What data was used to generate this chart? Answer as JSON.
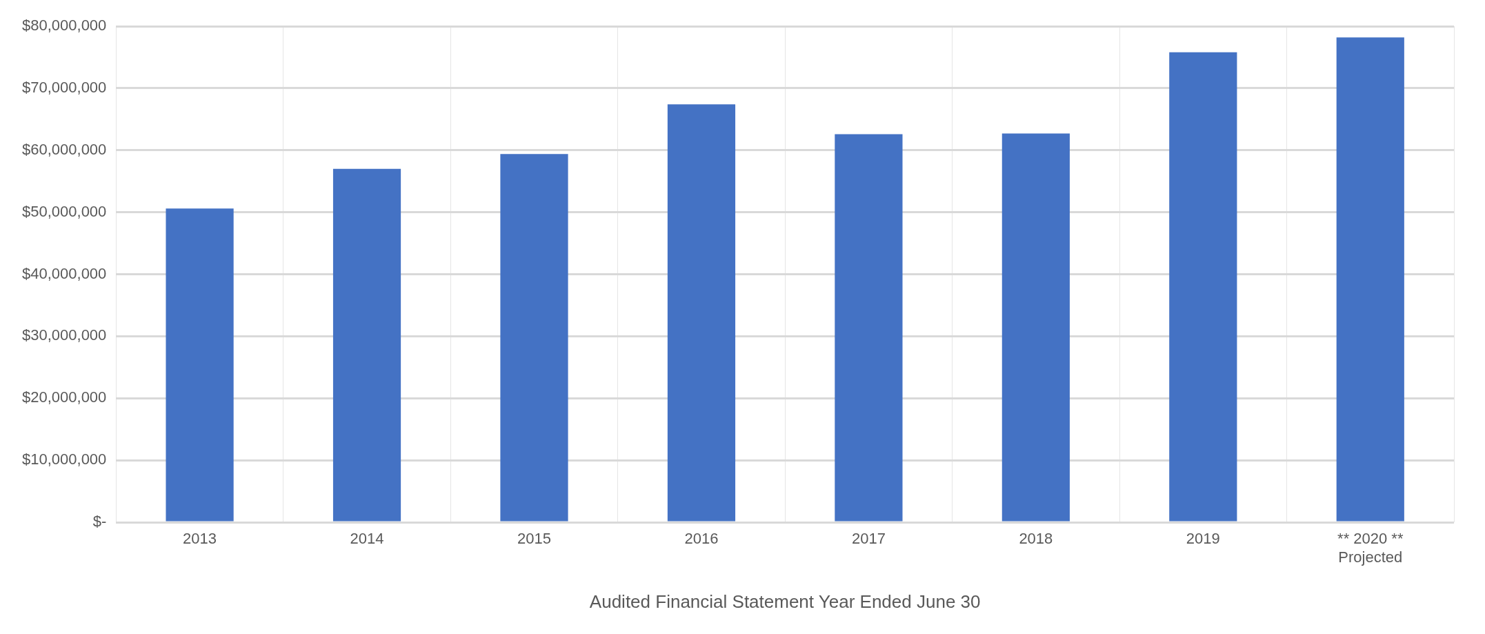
{
  "chart_data": {
    "type": "bar",
    "xlabel": "Audited Financial Statement Year Ended June 30",
    "categories": [
      "2013",
      "2014",
      "2015",
      "2016",
      "2017",
      "2018",
      "2019",
      "** 2020 **\nProjected"
    ],
    "values": [
      50600000,
      57000000,
      59400000,
      67400000,
      62600000,
      62700000,
      75800000,
      78200000
    ],
    "color": "#4472c4",
    "ylim": [
      0,
      80000000
    ],
    "yticks": [
      {
        "value": 0,
        "label": "$-"
      },
      {
        "value": 10000000,
        "label": "$10,000,000"
      },
      {
        "value": 20000000,
        "label": "$20,000,000"
      },
      {
        "value": 30000000,
        "label": "$30,000,000"
      },
      {
        "value": 40000000,
        "label": "$40,000,000"
      },
      {
        "value": 50000000,
        "label": "$50,000,000"
      },
      {
        "value": 60000000,
        "label": "$60,000,000"
      },
      {
        "value": 70000000,
        "label": "$70,000,000"
      },
      {
        "value": 80000000,
        "label": "$80,000,000"
      }
    ],
    "grid": true,
    "legend": false
  }
}
